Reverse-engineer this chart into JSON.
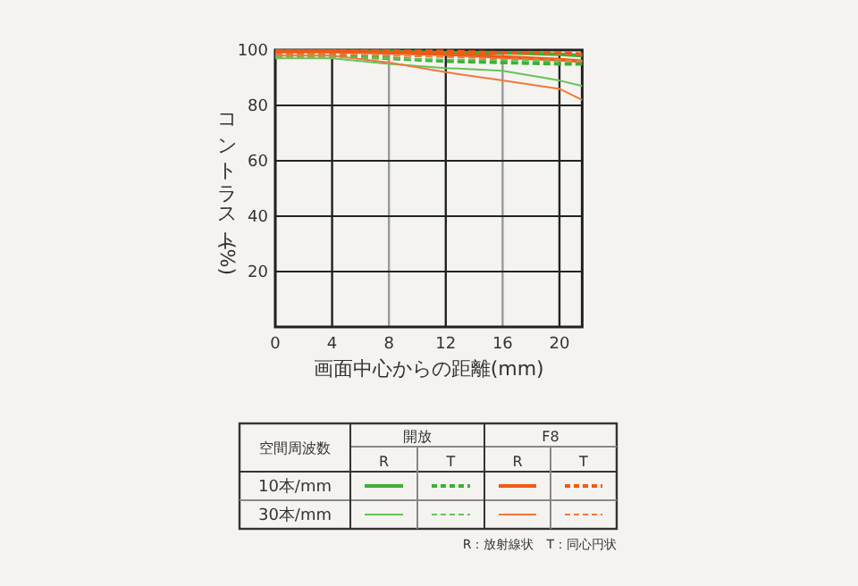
{
  "chart_data": {
    "type": "line",
    "xlabel": "画面中心からの距離(mm)",
    "ylabel": "コントラスト(%)",
    "x": [
      0,
      4,
      8,
      12,
      16,
      20,
      21.6
    ],
    "xlim": [
      0,
      21.6
    ],
    "xticks": [
      0,
      4,
      8,
      12,
      16,
      20
    ],
    "ylim": [
      0,
      100
    ],
    "yticks": [
      20,
      40,
      60,
      80,
      100
    ],
    "grid": true,
    "series": [
      {
        "color": "#3cb034",
        "line_style": "solid",
        "values": [
          99.5,
          99.5,
          99.5,
          99,
          99,
          98.5,
          98
        ]
      },
      {
        "color": "#3cb034",
        "line_style": "dashed",
        "values": [
          98.5,
          98,
          97,
          96,
          95.5,
          95,
          95
        ]
      },
      {
        "color": "#f05a14",
        "line_style": "solid",
        "values": [
          99.5,
          99.5,
          99,
          98.5,
          97.5,
          96.5,
          96
        ]
      },
      {
        "color": "#f05a14",
        "line_style": "dashed",
        "values": [
          99.5,
          99.5,
          99.5,
          99.5,
          99,
          99,
          98.5
        ]
      },
      {
        "color": "#66c25a",
        "line_style": "solid",
        "values": [
          97,
          97,
          95,
          93.5,
          92.5,
          89,
          87
        ]
      },
      {
        "color": "#66c25a",
        "line_style": "dashed",
        "values": [
          97.5,
          97.5,
          97,
          96.5,
          96.5,
          96,
          96
        ]
      },
      {
        "color": "#f0783c",
        "line_style": "solid",
        "values": [
          98,
          98,
          95.5,
          92,
          89,
          86,
          82
        ]
      },
      {
        "color": "#f0783c",
        "line_style": "dashed",
        "values": [
          98.5,
          98.5,
          98,
          97.5,
          97,
          96.5,
          96
        ]
      }
    ],
    "annotations": [
      "空間周波数",
      "開放",
      "F8",
      "R",
      "T",
      "10本/mm",
      "30本/mm",
      "R：放射線状　T：同心円状"
    ]
  }
}
